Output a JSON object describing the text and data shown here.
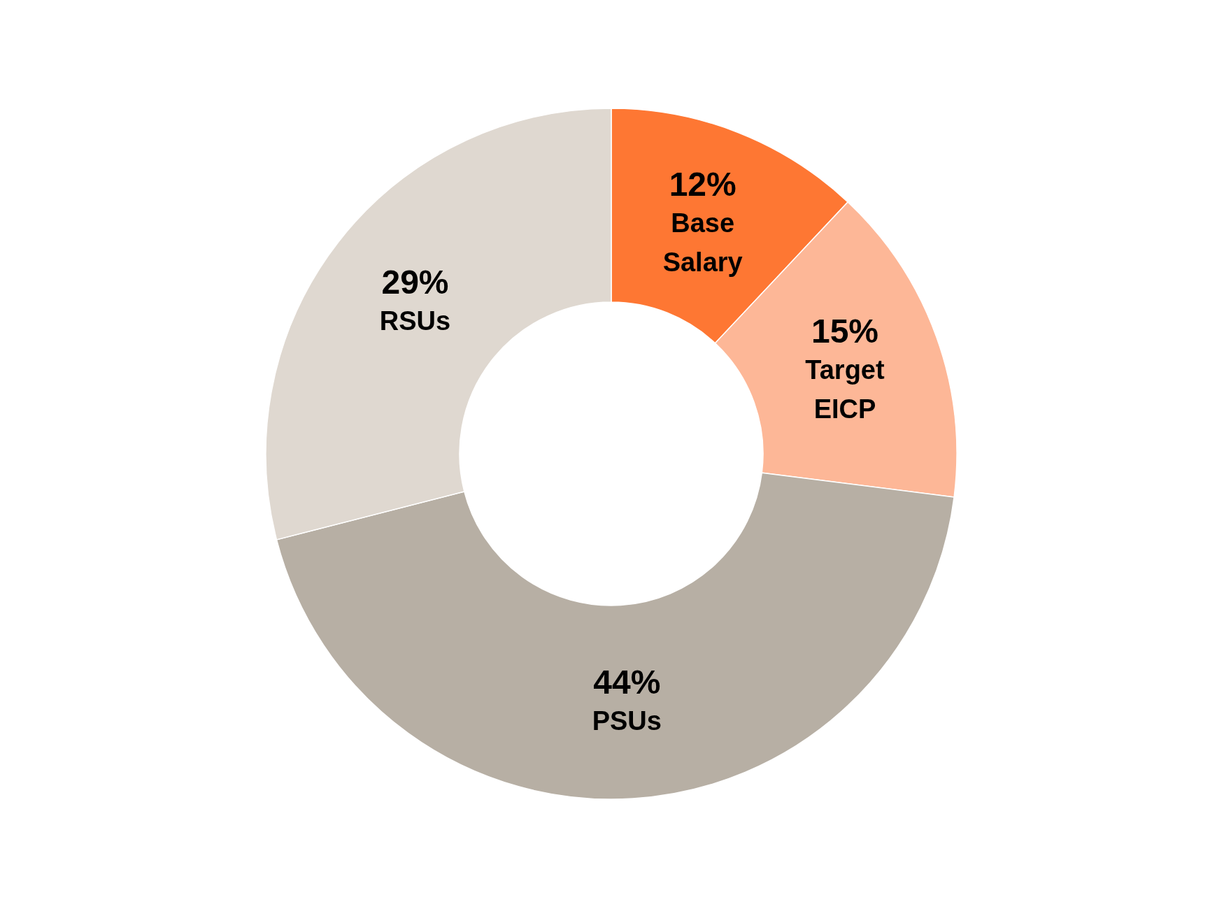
{
  "chart_data": {
    "type": "donut",
    "categories": [
      "Base Salary",
      "Target EICP",
      "PSUs",
      "RSUs"
    ],
    "values": [
      12,
      15,
      44,
      29
    ],
    "value_labels": [
      "12%",
      "15%",
      "44%",
      "29%"
    ],
    "colors": [
      "#fe7733",
      "#fdb797",
      "#b7afa4",
      "#dfd8d0"
    ],
    "legend": false
  }
}
